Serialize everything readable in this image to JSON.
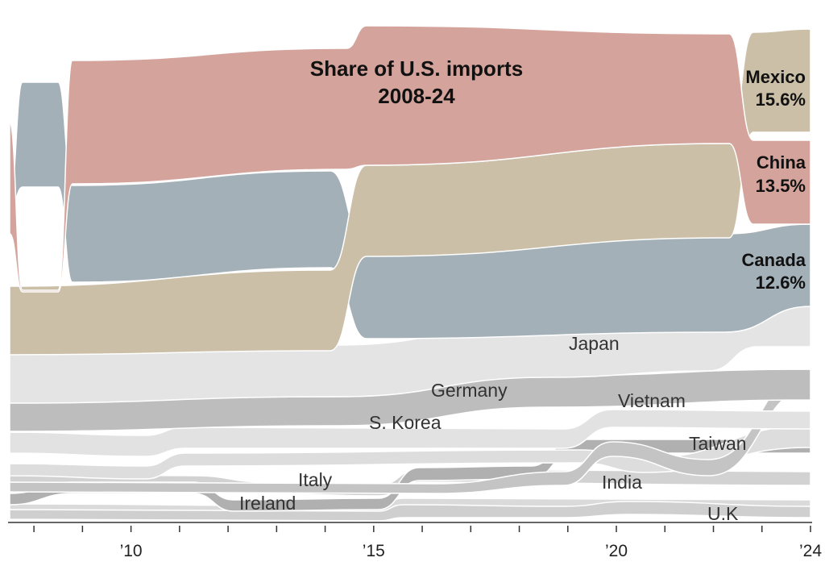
{
  "chart_data": {
    "type": "area",
    "subtype": "bump-stream",
    "title_line1": "Share of U.S. imports",
    "title_line2": "2008-24",
    "xlim": [
      2007.5,
      2024
    ],
    "x_ticks": [
      2008,
      2009,
      2010,
      2011,
      2012,
      2013,
      2014,
      2015,
      2016,
      2017,
      2018,
      2019,
      2020,
      2021,
      2022,
      2023,
      2024
    ],
    "x_tick_labels": [
      {
        "year": 2010,
        "label": "’10"
      },
      {
        "year": 2015,
        "label": "’15"
      },
      {
        "year": 2020,
        "label": "’20"
      },
      {
        "year": 2024,
        "label": "’24"
      }
    ],
    "series": [
      {
        "name": "Mexico",
        "color": "#cbbfa8",
        "share_2024": "15.6%",
        "ranks": {
          "2008": 3,
          "2009": 3,
          "2010": 3,
          "2011": 3,
          "2012": 3,
          "2013": 3,
          "2014": 3,
          "2015": 2,
          "2016": 2,
          "2017": 2,
          "2018": 2,
          "2019": 2,
          "2020": 2,
          "2021": 2,
          "2022": 2,
          "2023": 1,
          "2024": 1
        }
      },
      {
        "name": "China",
        "color": "#d4a49c",
        "share_2024": "13.5%",
        "ranks": {
          "2008": 2,
          "2009": 1,
          "2010": 1,
          "2011": 1,
          "2012": 1,
          "2013": 1,
          "2014": 1,
          "2015": 1,
          "2016": 1,
          "2017": 1,
          "2018": 1,
          "2019": 1,
          "2020": 1,
          "2021": 1,
          "2022": 1,
          "2023": 2,
          "2024": 2
        }
      },
      {
        "name": "Canada",
        "color": "#a4b0b8",
        "share_2024": "12.6%",
        "ranks": {
          "2008": 1,
          "2009": 2,
          "2010": 2,
          "2011": 2,
          "2012": 2,
          "2013": 2,
          "2014": 2,
          "2015": 3,
          "2016": 3,
          "2017": 3,
          "2018": 3,
          "2019": 3,
          "2020": 3,
          "2021": 3,
          "2022": 3,
          "2023": 3,
          "2024": 3
        }
      },
      {
        "name": "Japan",
        "color": "#e4e4e4"
      },
      {
        "name": "Germany",
        "color": "#bdbdbd"
      },
      {
        "name": "S. Korea",
        "color": "#e2e2e2"
      },
      {
        "name": "Vietnam",
        "color": "#c4c4c4"
      },
      {
        "name": "Taiwan",
        "color": "#dddddd"
      },
      {
        "name": "Italy",
        "color": "#d2d2d2"
      },
      {
        "name": "Ireland",
        "color": "#b0b0b0"
      },
      {
        "name": "India",
        "color": "#cfcfcf"
      },
      {
        "name": "U.K",
        "color": "#dadada"
      }
    ],
    "labels": {
      "mexico": "Mexico",
      "mexico_pct": "15.6%",
      "china": "China",
      "china_pct": "13.5%",
      "canada": "Canada",
      "canada_pct": "12.6%",
      "japan": "Japan",
      "germany": "Germany",
      "skorea": "S. Korea",
      "vietnam": "Vietnam",
      "taiwan": "Taiwan",
      "italy": "Italy",
      "ireland": "Ireland",
      "india": "India",
      "uk": "U.K"
    }
  }
}
